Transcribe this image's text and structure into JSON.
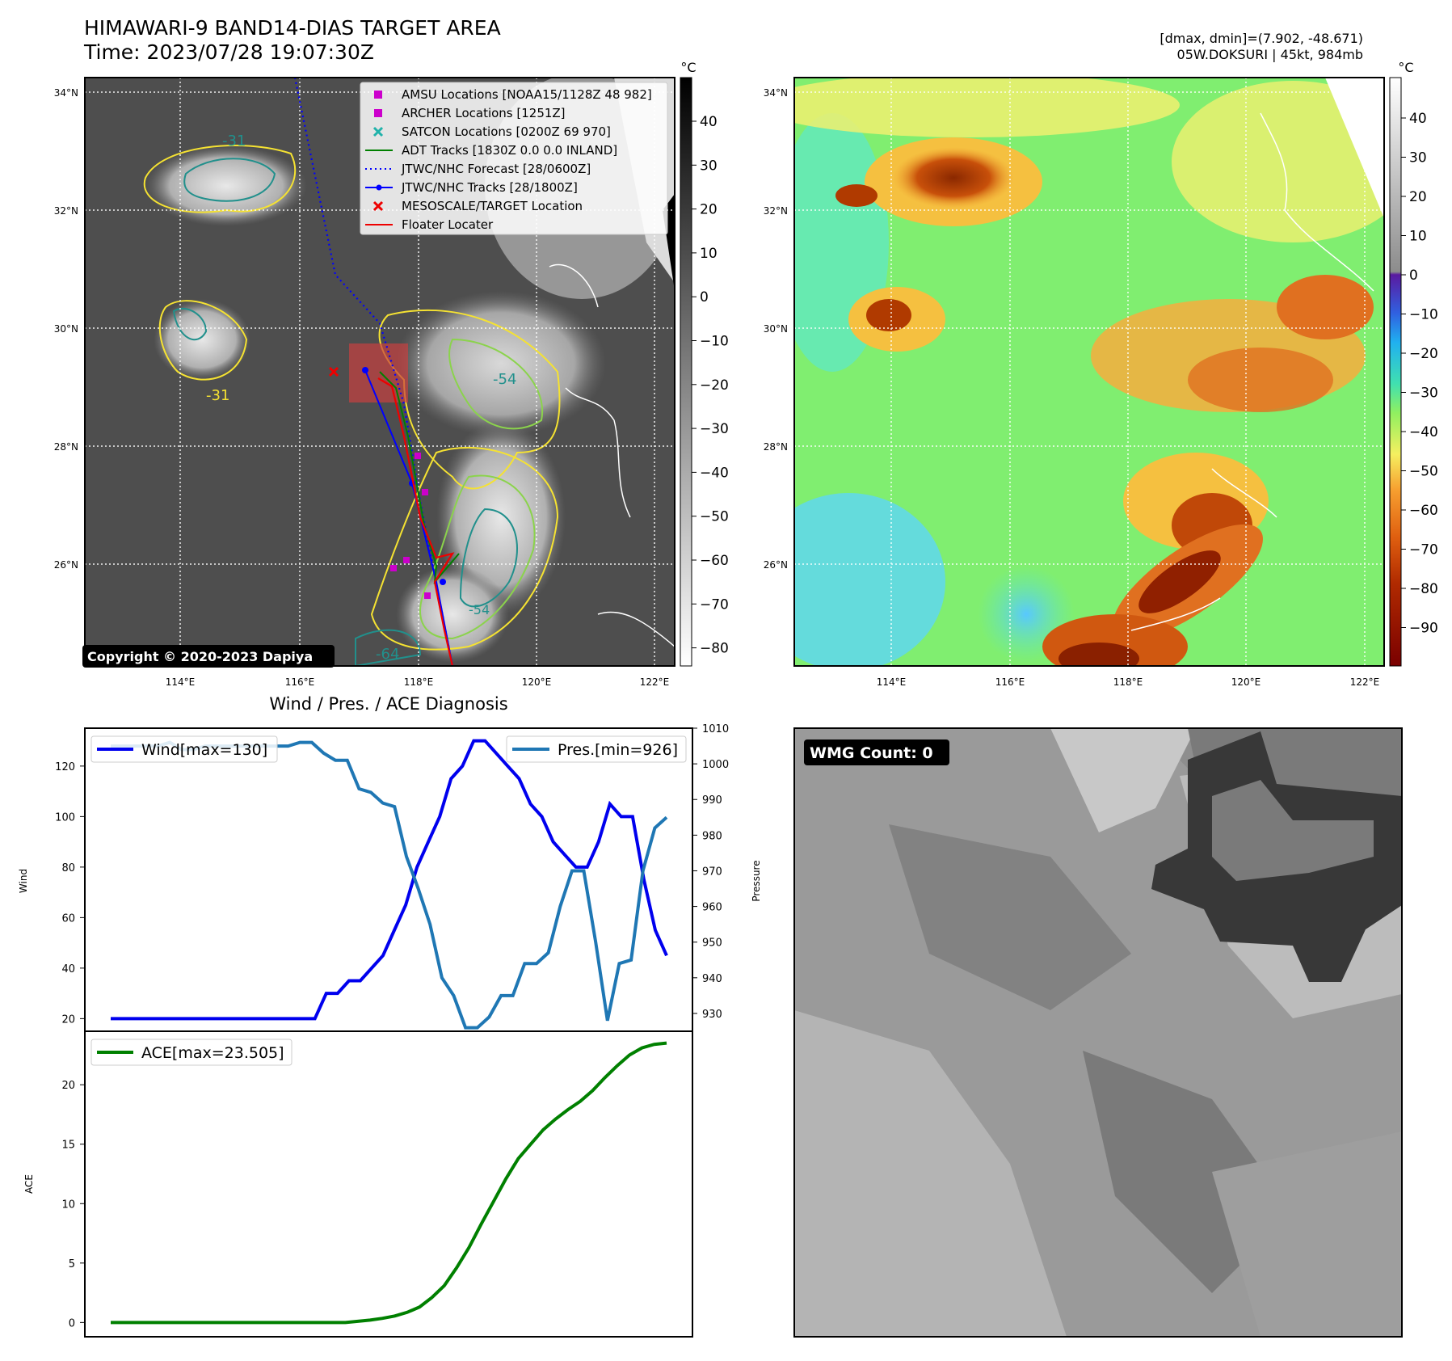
{
  "header": {
    "title": "HIMAWARI-9 BAND14-DIAS TARGET AREA",
    "time": "Time: 2023/07/28 19:07:30Z"
  },
  "info": {
    "dmax_dmin": "[dmax, dmin]=(7.902, -48.671)",
    "storm": "05W.DOKSURI | 45kt, 984mb"
  },
  "colors": {
    "wind": "#0000ee",
    "pressure": "#1f77b4",
    "ace": "#008000",
    "legend_amsu": "#cc00cc",
    "legend_satcon": "#20b2aa",
    "legend_adt": "#008000",
    "legend_jtwc": "#0000ff",
    "legend_target": "#ee0000",
    "contour_yellow": "#f5e232",
    "contour_green": "#8bd34c",
    "contour_teal": "#21908c"
  },
  "map_left": {
    "colorbar_unit": "°C",
    "colorbar_ticks": [
      "40",
      "30",
      "20",
      "10",
      "0",
      "−10",
      "−20",
      "−30",
      "−40",
      "−50",
      "−60",
      "−70",
      "−80"
    ],
    "lon_labels": [
      "114°E",
      "116°E",
      "118°E",
      "120°E",
      "122°E"
    ],
    "lat_labels": [
      "34°N",
      "32°N",
      "30°N",
      "28°N",
      "26°N"
    ],
    "contour_labels": [
      "-31",
      "-31",
      "-54",
      "-64",
      "-54"
    ],
    "copyright": "Copyright © 2020-2023 Dapiya",
    "legend": [
      {
        "label": "AMSU Locations [NOAA15/1128Z 48 982]",
        "marker": "square",
        "color": "#cc00cc"
      },
      {
        "label": "ARCHER Locations [1251Z]",
        "marker": "square",
        "color": "#cc00cc"
      },
      {
        "label": "SATCON Locations [0200Z 69 970]",
        "marker": "x",
        "color": "#20b2aa"
      },
      {
        "label": "ADT Tracks [1830Z 0.0 0.0 INLAND]",
        "marker": "line",
        "color": "#008000"
      },
      {
        "label": "JTWC/NHC Forecast [28/0600Z]",
        "marker": "dotted",
        "color": "#0000ff"
      },
      {
        "label": "JTWC/NHC Tracks [28/1800Z]",
        "marker": "line-dot",
        "color": "#0000ff"
      },
      {
        "label": "MESOSCALE/TARGET Location",
        "marker": "x",
        "color": "#ee0000"
      },
      {
        "label": "Floater Locater",
        "marker": "line",
        "color": "#ee0000"
      }
    ]
  },
  "map_right": {
    "colorbar_unit": "°C",
    "colorbar_ticks": [
      "40",
      "30",
      "20",
      "10",
      "0",
      "−10",
      "−20",
      "−30",
      "−40",
      "−50",
      "−60",
      "−70",
      "−80",
      "−90"
    ],
    "lon_labels": [
      "114°E",
      "116°E",
      "118°E",
      "120°E",
      "122°E"
    ],
    "lat_labels": [
      "34°N",
      "32°N",
      "30°N",
      "28°N",
      "26°N"
    ]
  },
  "wmg": {
    "label": "WMG Count: 0"
  },
  "chart_data": [
    {
      "type": "line",
      "title": "Wind / Pres. / ACE Diagnosis",
      "ylabel": "Wind",
      "y2label": "Pressure",
      "ylim": [
        15,
        135
      ],
      "y2lim": [
        925,
        1010
      ],
      "yticks": [
        "120",
        "100",
        "80",
        "60",
        "40",
        "20"
      ],
      "y2ticks": [
        "1010",
        "1000",
        "990",
        "980",
        "970",
        "960",
        "950",
        "940",
        "930"
      ],
      "series": [
        {
          "name": "Wind[max=130]",
          "axis": "left",
          "values": [
            20,
            20,
            20,
            20,
            20,
            20,
            20,
            20,
            20,
            20,
            20,
            20,
            20,
            20,
            20,
            20,
            20,
            20,
            20,
            30,
            30,
            35,
            35,
            40,
            45,
            55,
            65,
            80,
            90,
            100,
            115,
            120,
            130,
            130,
            125,
            120,
            115,
            105,
            100,
            90,
            85,
            80,
            80,
            90,
            105,
            100,
            100,
            75,
            55,
            45
          ]
        },
        {
          "name": "Pres.[min=926]",
          "axis": "right",
          "values": [
            1005,
            1005,
            1005,
            1005,
            1005,
            1006,
            1004,
            1004,
            1005,
            1005,
            1005,
            1005,
            1005,
            1005,
            1005,
            1005,
            1006,
            1006,
            1003,
            1001,
            1001,
            993,
            992,
            989,
            988,
            974,
            965,
            955,
            940,
            935,
            926,
            926,
            929,
            935,
            935,
            944,
            944,
            947,
            960,
            970,
            970,
            950,
            928,
            944,
            945,
            970,
            982,
            985
          ]
        }
      ]
    },
    {
      "type": "line",
      "ylabel": "ACE",
      "ylim": [
        -1.2,
        24.5
      ],
      "yticks": [
        "20",
        "15",
        "10",
        "5",
        "0"
      ],
      "series": [
        {
          "name": "ACE[max=23.505]",
          "values": [
            0,
            0,
            0,
            0,
            0,
            0,
            0,
            0,
            0,
            0,
            0,
            0,
            0,
            0,
            0,
            0,
            0,
            0,
            0,
            0,
            0.1,
            0.2,
            0.35,
            0.55,
            0.85,
            1.3,
            2.1,
            3.1,
            4.6,
            6.3,
            8.3,
            10.2,
            12.1,
            13.8,
            15.0,
            16.2,
            17.1,
            17.9,
            18.6,
            19.5,
            20.6,
            21.6,
            22.5,
            23.1,
            23.4,
            23.505
          ]
        }
      ]
    }
  ]
}
